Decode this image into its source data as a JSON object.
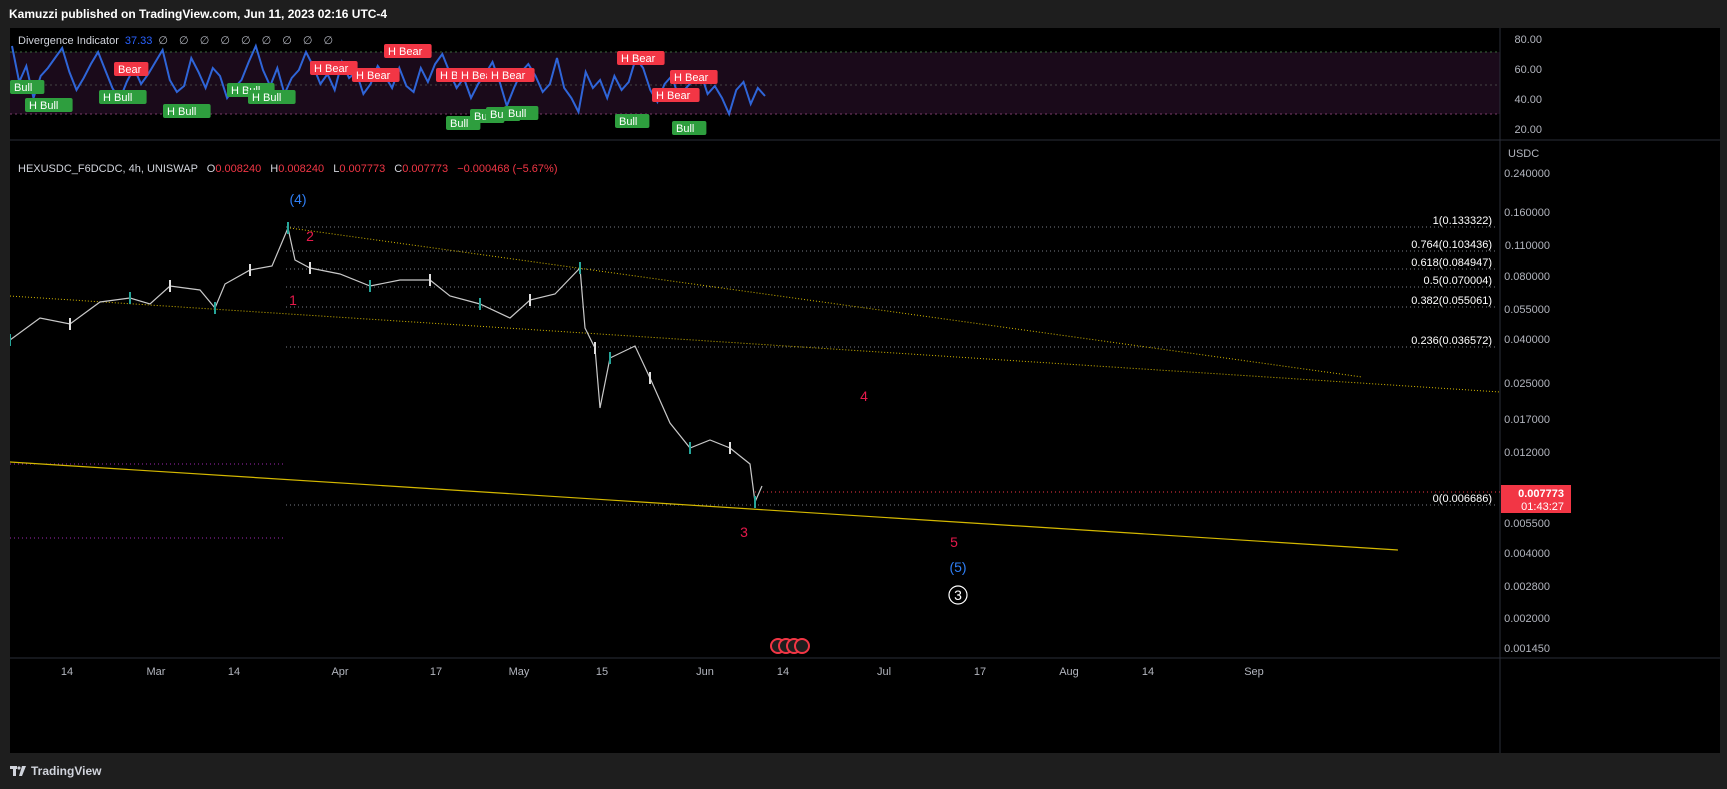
{
  "header": {
    "published_text": "Kamuzzi published on TradingView.com, Jun 11, 2023 02:16 UTC-4"
  },
  "indicator": {
    "name": "Divergence Indicator",
    "value": "37.33",
    "placeholders": "∅ ∅ ∅ ∅ ∅ ∅ ∅ ∅ ∅",
    "axis_ticks": [
      "80.00",
      "60.00",
      "40.00",
      "20.00"
    ],
    "labels": [
      {
        "text": "Bull",
        "type": "bull"
      },
      {
        "text": "H Bull",
        "type": "bull"
      },
      {
        "text": "Bear",
        "type": "bear"
      },
      {
        "text": "H Bull",
        "type": "bull"
      },
      {
        "text": "H Bull",
        "type": "bull"
      },
      {
        "text": "H Bull",
        "type": "bull"
      },
      {
        "text": "H Bull",
        "type": "bull"
      },
      {
        "text": "H Bear",
        "type": "bear"
      },
      {
        "text": "H Bear",
        "type": "bear"
      },
      {
        "text": "H Bear",
        "type": "bear"
      },
      {
        "text": "H Bear",
        "type": "bear"
      },
      {
        "text": "H Bear",
        "type": "bear"
      },
      {
        "text": "H Bear",
        "type": "bear"
      },
      {
        "text": "Bull",
        "type": "bull"
      },
      {
        "text": "Bull",
        "type": "bull"
      },
      {
        "text": "Bull",
        "type": "bull"
      },
      {
        "text": "Bull",
        "type": "bull"
      },
      {
        "text": "H Bear",
        "type": "bear"
      },
      {
        "text": "H Bear",
        "type": "bear"
      },
      {
        "text": "H Bear",
        "type": "bear"
      },
      {
        "text": "Bull",
        "type": "bull"
      },
      {
        "text": "Bull",
        "type": "bull"
      }
    ]
  },
  "symbol": {
    "title": "HEXUSDC_F6DCDC, 4h, UNISWAP",
    "o_label": "O",
    "o": "0.008240",
    "h_label": "H",
    "h": "0.008240",
    "l_label": "L",
    "l": "0.007773",
    "c_label": "C",
    "c": "0.007773",
    "change": "−0.000468 (−5.67%)"
  },
  "price_axis": {
    "currency": "USDC",
    "ticks": [
      "0.240000",
      "0.160000",
      "0.110000",
      "0.080000",
      "0.055000",
      "0.040000",
      "0.025000",
      "0.017000",
      "0.012000",
      "0.005500",
      "0.004000",
      "0.002800",
      "0.002000",
      "0.001450"
    ],
    "last_price": "0.007773",
    "countdown": "01:43:27"
  },
  "time_axis": {
    "ticks": [
      "14",
      "Mar",
      "14",
      "Apr",
      "17",
      "May",
      "15",
      "Jun",
      "14",
      "Jul",
      "17",
      "Aug",
      "14",
      "Sep"
    ]
  },
  "fib_levels": [
    {
      "label": "1(0.133322)"
    },
    {
      "label": "0.764(0.103436)"
    },
    {
      "label": "0.618(0.084947)"
    },
    {
      "label": "0.5(0.070004)"
    },
    {
      "label": "0.382(0.055061)"
    },
    {
      "label": "0.236(0.036572)"
    },
    {
      "label": "0(0.006686)"
    }
  ],
  "wave_labels": [
    {
      "text": "(4)",
      "color": "#2f7ff5"
    },
    {
      "text": "2",
      "color": "#e6194b"
    },
    {
      "text": "1",
      "color": "#e6194b"
    },
    {
      "text": "4",
      "color": "#e6194b"
    },
    {
      "text": "3",
      "color": "#e6194b"
    },
    {
      "text": "5",
      "color": "#e6194b"
    },
    {
      "text": "(5)",
      "color": "#2f7ff5"
    },
    {
      "text": "3",
      "color": "#ffffff"
    }
  ],
  "footer": {
    "brand": "TradingView"
  },
  "colors": {
    "bull": "#2e9e3e",
    "bear": "#f23645",
    "indicator_line": "#2f65d8",
    "trendline": "#d4b800",
    "price_tag": "#f23645"
  }
}
